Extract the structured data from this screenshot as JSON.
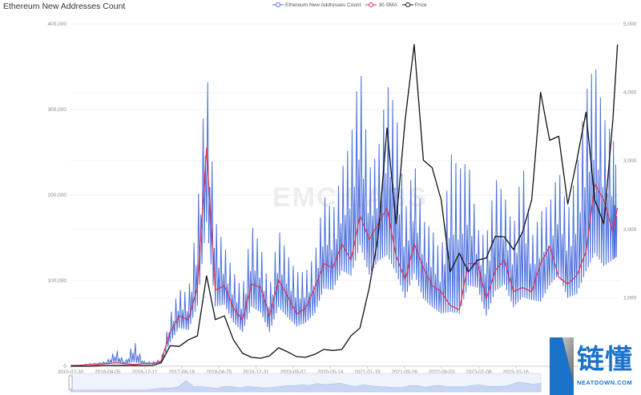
{
  "chart_data": {
    "type": "line",
    "title": "Ethereum New Addresses Count",
    "watermark": "EMC LABS",
    "legend_position": "top",
    "grid": true,
    "x_ticks": [
      "2015-07-30",
      "2016-04-05",
      "2016-12-11",
      "2017-08-18",
      "2018-04-25",
      "2018-12-31",
      "2019-09-07",
      "2020-05-14",
      "2021-01-19",
      "2021-09-26",
      "2022-06-03",
      "2023-02-08",
      "2023-10-16",
      "2"
    ],
    "y_left": {
      "ticks": [
        "0",
        "100,000",
        "200,000",
        "300,000",
        "400,000"
      ],
      "range": [
        0,
        400000
      ]
    },
    "y_right": {
      "ticks": [
        "1,000",
        "2,000",
        "3,000",
        "4,000",
        "5,000"
      ],
      "range": [
        0,
        5000
      ]
    },
    "x": [
      "2015-08",
      "2015-10",
      "2015-12",
      "2016-02",
      "2016-04",
      "2016-06",
      "2016-08",
      "2016-10",
      "2016-12",
      "2017-02",
      "2017-04",
      "2017-06",
      "2017-08",
      "2017-10",
      "2017-12",
      "2018-02",
      "2018-04",
      "2018-06",
      "2018-08",
      "2018-10",
      "2018-12",
      "2019-02",
      "2019-04",
      "2019-06",
      "2019-08",
      "2019-10",
      "2019-12",
      "2020-02",
      "2020-04",
      "2020-06",
      "2020-08",
      "2020-10",
      "2020-12",
      "2021-02",
      "2021-04",
      "2021-06",
      "2021-08",
      "2021-10",
      "2021-12",
      "2022-02",
      "2022-04",
      "2022-06",
      "2022-08",
      "2022-10",
      "2022-12",
      "2023-02",
      "2023-04",
      "2023-06",
      "2023-08",
      "2023-10",
      "2023-12",
      "2024-02",
      "2024-04",
      "2024-06",
      "2024-08",
      "2024-10",
      "2024-12",
      "2025-02",
      "2025-04",
      "2025-06",
      "2025-08",
      "2025-09"
    ],
    "series": [
      {
        "name": "Ethereum New Addresses Count",
        "color": "#4a6fdc",
        "axis": "left",
        "high": [
          1000,
          1500,
          3000,
          4000,
          6000,
          20000,
          5000,
          30000,
          6000,
          5000,
          8000,
          60000,
          90000,
          85000,
          180000,
          355000,
          170000,
          140000,
          110000,
          90000,
          165000,
          140000,
          90000,
          160000,
          130000,
          110000,
          110000,
          130000,
          200000,
          180000,
          230000,
          265000,
          355000,
          230000,
          250000,
          330000,
          300000,
          180000,
          240000,
          170000,
          160000,
          130000,
          250000,
          230000,
          240000,
          160000,
          150000,
          220000,
          200000,
          160000,
          240000,
          150000,
          180000,
          190000,
          230000,
          180000,
          230000,
          320000,
          355000,
          290000,
          270000,
          215000
        ],
        "low": [
          500,
          800,
          1500,
          2000,
          2500,
          3000,
          2500,
          2000,
          2500,
          2500,
          4000,
          25000,
          40000,
          38000,
          60000,
          150000,
          60000,
          65000,
          45000,
          35000,
          60000,
          55000,
          35000,
          60000,
          50000,
          40000,
          45000,
          55000,
          80000,
          80000,
          100000,
          90000,
          120000,
          95000,
          110000,
          110000,
          90000,
          70000,
          95000,
          70000,
          60000,
          55000,
          45000,
          45000,
          80000,
          85000,
          50000,
          75000,
          85000,
          60000,
          65000,
          70000,
          65000,
          85000,
          95000,
          70000,
          70000,
          90000,
          110000,
          100000,
          110000,
          120000
        ]
      },
      {
        "name": "30-SMA",
        "color": "#e0304a",
        "axis": "left",
        "values": [
          1000,
          1000,
          2000,
          2000,
          3000,
          4000,
          3000,
          2000,
          3000,
          3000,
          6000,
          40000,
          59000,
          54000,
          92000,
          255000,
          89000,
          94000,
          68000,
          54000,
          96000,
          92000,
          59000,
          101000,
          82000,
          61000,
          68000,
          92000,
          120000,
          115000,
          143000,
          124000,
          176000,
          148000,
          166000,
          185000,
          129000,
          101000,
          143000,
          115000,
          94000,
          87000,
          71000,
          66000,
          120000,
          120000,
          79000,
          112000,
          124000,
          87000,
          92000,
          87000,
          120000,
          140000,
          104000,
          96000,
          106000,
          134000,
          213000,
          194000,
          157000,
          185000
        ]
      },
      {
        "name": "Price",
        "color": "#111111",
        "axis": "right",
        "values": [
          1,
          1,
          1,
          5,
          10,
          12,
          11,
          10,
          9,
          12,
          50,
          300,
          290,
          385,
          444,
          1320,
          680,
          735,
          385,
          190,
          130,
          117,
          150,
          270,
          210,
          140,
          130,
          175,
          245,
          230,
          245,
          444,
          560,
          1145,
          1880,
          3480,
          2080,
          3600,
          4700,
          3010,
          2900,
          2430,
          1380,
          1650,
          1380,
          1550,
          1580,
          1900,
          1890,
          1705,
          1960,
          2430,
          4000,
          3300,
          3360,
          2370,
          3010,
          3710,
          2430,
          2080,
          3600,
          4700
        ]
      }
    ]
  },
  "logo": {
    "text": "链懂",
    "sub": "NEATDOWN.COM"
  }
}
